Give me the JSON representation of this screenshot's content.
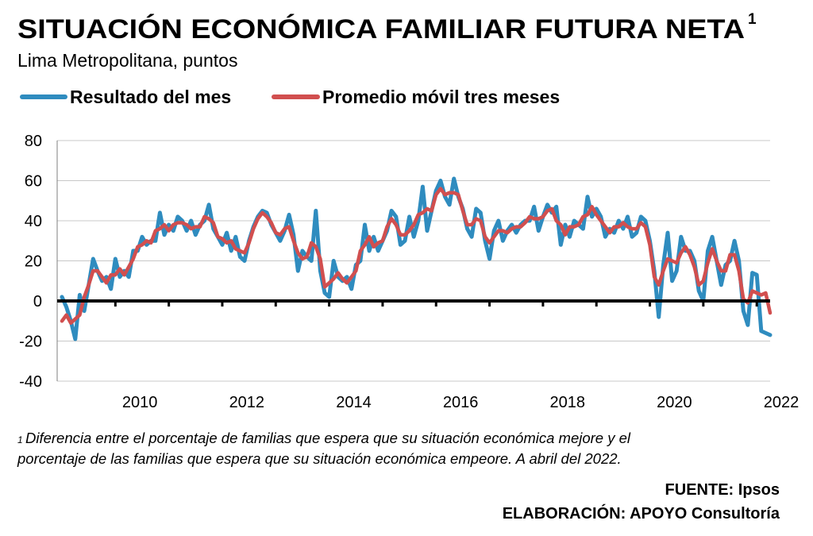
{
  "chart_data": {
    "type": "line",
    "title": "SITUACIÓN ECONÓMICA FAMILIAR FUTURA NETA",
    "title_note_mark": "1",
    "subtitle": "Lima Metropolitana, puntos",
    "footnote_mark": "1",
    "footnote": [
      "Diferencia entre el porcentaje de familias que espera que su situación económica mejore y el",
      "porcentaje de las familias que espera que su situación económica empeore. A abril del 2022."
    ],
    "source": [
      "FUENTE: Ipsos",
      "ELABORACIÓN: APOYO Consultoría"
    ],
    "x": [
      "2009-01",
      "2009-02",
      "2009-03",
      "2009-04",
      "2009-05",
      "2009-06",
      "2009-07",
      "2009-08",
      "2009-09",
      "2009-10",
      "2009-11",
      "2009-12",
      "2010-01",
      "2010-02",
      "2010-03",
      "2010-04",
      "2010-05",
      "2010-06",
      "2010-07",
      "2010-08",
      "2010-09",
      "2010-10",
      "2010-11",
      "2010-12",
      "2011-01",
      "2011-02",
      "2011-03",
      "2011-04",
      "2011-05",
      "2011-06",
      "2011-07",
      "2011-08",
      "2011-09",
      "2011-10",
      "2011-11",
      "2011-12",
      "2012-01",
      "2012-02",
      "2012-03",
      "2012-04",
      "2012-05",
      "2012-06",
      "2012-07",
      "2012-08",
      "2012-09",
      "2012-10",
      "2012-11",
      "2012-12",
      "2013-01",
      "2013-02",
      "2013-03",
      "2013-04",
      "2013-05",
      "2013-06",
      "2013-07",
      "2013-08",
      "2013-09",
      "2013-10",
      "2013-11",
      "2013-12",
      "2014-01",
      "2014-02",
      "2014-03",
      "2014-04",
      "2014-05",
      "2014-06",
      "2014-07",
      "2014-08",
      "2014-09",
      "2014-10",
      "2014-11",
      "2014-12",
      "2015-01",
      "2015-02",
      "2015-03",
      "2015-04",
      "2015-05",
      "2015-06",
      "2015-07",
      "2015-08",
      "2015-09",
      "2015-10",
      "2015-11",
      "2015-12",
      "2016-01",
      "2016-02",
      "2016-03",
      "2016-04",
      "2016-05",
      "2016-06",
      "2016-07",
      "2016-08",
      "2016-09",
      "2016-10",
      "2016-11",
      "2016-12",
      "2017-01",
      "2017-02",
      "2017-03",
      "2017-04",
      "2017-05",
      "2017-06",
      "2017-07",
      "2017-08",
      "2017-09",
      "2017-10",
      "2017-11",
      "2017-12",
      "2018-01",
      "2018-02",
      "2018-03",
      "2018-04",
      "2018-05",
      "2018-06",
      "2018-07",
      "2018-08",
      "2018-09",
      "2018-10",
      "2018-11",
      "2018-12",
      "2019-01",
      "2019-02",
      "2019-03",
      "2019-04",
      "2019-05",
      "2019-06",
      "2019-07",
      "2019-08",
      "2019-09",
      "2019-10",
      "2019-11",
      "2019-12",
      "2020-01",
      "2020-02",
      "2020-03",
      "2020-04",
      "2020-05",
      "2020-06",
      "2020-07",
      "2020-08",
      "2020-09",
      "2020-10",
      "2020-11",
      "2020-12",
      "2021-01",
      "2021-02",
      "2021-03",
      "2021-04",
      "2021-05",
      "2021-06",
      "2021-07",
      "2021-08",
      "2021-09",
      "2021-10",
      "2021-11",
      "2021-12",
      "2022-01",
      "2022-02",
      "2022-03",
      "2022-04"
    ],
    "series": [
      {
        "name": "Resultado del mes",
        "color": "#2f8cbf",
        "values": [
          2,
          -3,
          -10,
          -19,
          3,
          -5,
          8,
          21,
          15,
          10,
          12,
          6,
          21,
          12,
          15,
          12,
          25,
          25,
          32,
          28,
          30,
          30,
          44,
          33,
          38,
          35,
          42,
          40,
          35,
          40,
          33,
          38,
          40,
          48,
          36,
          32,
          28,
          34,
          25,
          32,
          22,
          20,
          30,
          37,
          42,
          45,
          44,
          38,
          34,
          30,
          35,
          43,
          33,
          15,
          25,
          22,
          20,
          45,
          15,
          4,
          2,
          20,
          12,
          10,
          12,
          6,
          18,
          20,
          38,
          25,
          32,
          25,
          30,
          35,
          45,
          42,
          28,
          30,
          42,
          32,
          40,
          57,
          35,
          45,
          55,
          60,
          52,
          48,
          61,
          52,
          46,
          36,
          32,
          46,
          44,
          30,
          21,
          35,
          40,
          30,
          35,
          38,
          34,
          38,
          40,
          40,
          47,
          35,
          42,
          48,
          44,
          47,
          28,
          38,
          32,
          40,
          38,
          36,
          52,
          42,
          46,
          42,
          32,
          36,
          34,
          40,
          36,
          42,
          32,
          34,
          42,
          40,
          30,
          15,
          -8,
          18,
          34,
          10,
          15,
          32,
          25,
          25,
          20,
          5,
          0,
          25,
          32,
          20,
          8,
          18,
          20,
          30,
          20,
          -5,
          -12,
          14,
          13,
          -15,
          -16,
          -17
        ]
      },
      {
        "name": "Promedio móvil tres meses",
        "color": "#d14f4f",
        "values": [
          -10,
          -7,
          -11,
          -9,
          -7,
          2,
          8,
          15,
          15,
          12,
          9,
          13,
          13,
          16,
          13,
          17,
          21,
          27,
          28,
          30,
          29,
          35,
          36,
          38,
          35,
          38,
          39,
          39,
          38,
          36,
          37,
          37,
          42,
          41,
          39,
          32,
          31,
          29,
          30,
          26,
          25,
          24,
          29,
          36,
          41,
          44,
          42,
          39,
          34,
          33,
          36,
          37,
          30,
          24,
          21,
          22,
          29,
          27,
          21,
          7,
          9,
          11,
          14,
          11,
          9,
          12,
          15,
          25,
          28,
          32,
          27,
          29,
          30,
          37,
          41,
          38,
          33,
          33,
          35,
          38,
          43,
          44,
          46,
          45,
          53,
          56,
          53,
          54,
          54,
          53,
          45,
          38,
          38,
          41,
          40,
          32,
          29,
          32,
          35,
          35,
          34,
          36,
          37,
          37,
          39,
          42,
          41,
          41,
          42,
          45,
          46,
          40,
          38,
          33,
          37,
          37,
          38,
          42,
          43,
          47,
          43,
          40,
          37,
          34,
          37,
          37,
          39,
          37,
          36,
          36,
          39,
          37,
          28,
          12,
          8,
          15,
          21,
          20,
          19,
          24,
          27,
          23,
          17,
          8,
          10,
          19,
          26,
          20,
          15,
          15,
          23,
          23,
          15,
          1,
          -1,
          5,
          4,
          3,
          4,
          -6
        ]
      }
    ],
    "xlim": [
      "2009-01",
      "2022-04"
    ],
    "xticks": [
      "2010",
      "2012",
      "2014",
      "2016",
      "2018",
      "2020",
      "2022"
    ],
    "ylim": [
      -40,
      80
    ],
    "yticks": [
      -40,
      -20,
      0,
      20,
      40,
      60,
      80
    ],
    "grid": true,
    "title_color": "#7a1446"
  }
}
